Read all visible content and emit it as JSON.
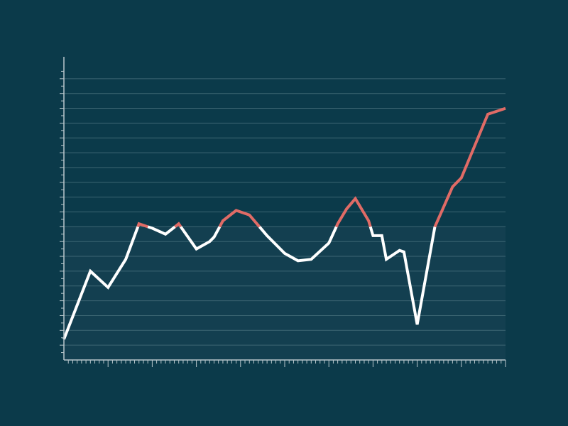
{
  "chart_data": {
    "type": "line",
    "title": "",
    "xlabel": "",
    "ylabel": "",
    "grid": true,
    "legend": "none",
    "xlim": [
      0,
      50
    ],
    "ylim": [
      0,
      100
    ],
    "threshold": 45,
    "colors": {
      "background": "#0b3a4a",
      "below_band": "#133f50",
      "grid": "#3d6673",
      "axis": "#b9c7cc",
      "line_below": "#ffffff",
      "line_above": "#e06b66"
    },
    "series": [
      {
        "x": [
          0,
          3,
          5,
          7,
          8.5,
          10,
          11.5,
          13,
          15,
          16.5,
          17,
          18,
          19.5,
          21,
          23,
          25,
          26.5,
          28,
          30,
          31,
          32,
          33,
          34.5,
          35,
          36,
          36.5,
          37.5,
          38,
          38.5,
          40,
          42,
          44,
          45,
          48,
          50
        ],
        "y": [
          7,
          30,
          24.5,
          34,
          46,
          44.5,
          42.5,
          46,
          37.5,
          40,
          41.5,
          47,
          50.5,
          49,
          42,
          36,
          33.5,
          34,
          39.5,
          46,
          51,
          54.5,
          47,
          42,
          42,
          34,
          36,
          37,
          36.5,
          12,
          45,
          58.5,
          61.5,
          83,
          85
        ]
      }
    ]
  }
}
